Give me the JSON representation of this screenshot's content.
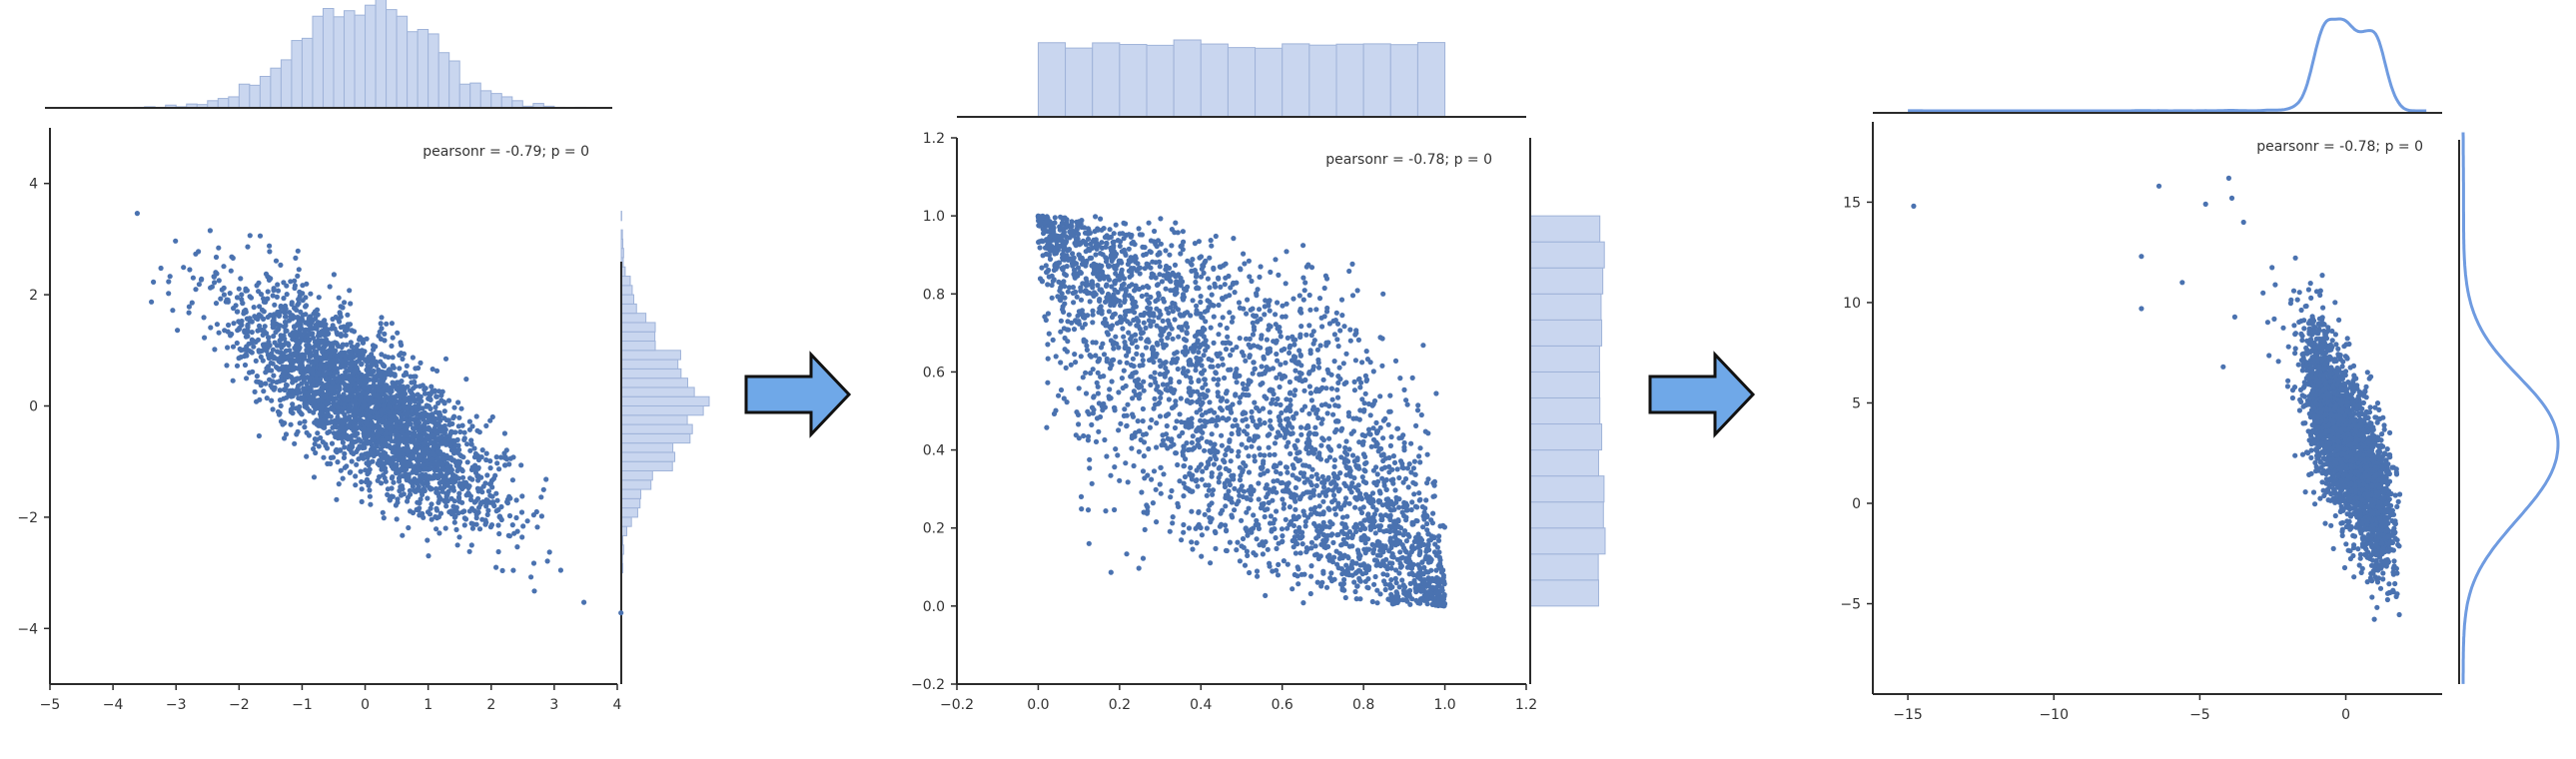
{
  "colors": {
    "point": "#4a72b0",
    "hist_fill": "#c9d6ef",
    "hist_stroke": "#9fb3d9",
    "kde_line": "#6f9be0",
    "axis": "#2b2b2b",
    "arrow_fill": "#6fa8e8",
    "arrow_stroke": "#111111"
  },
  "icons": [
    "arrow-right-icon",
    "arrow-right-icon"
  ],
  "chart_data": [
    {
      "type": "scatter",
      "title": "",
      "xlabel": "",
      "ylabel": "",
      "annotation": "pearsonr = -0.79; p = 0",
      "marginals": "histogram",
      "xlim": [
        -5,
        4
      ],
      "ylim": [
        -5,
        5
      ],
      "xticks": [
        -5,
        -4,
        -3,
        -2,
        -1,
        0,
        1,
        2,
        3,
        4
      ],
      "xtick_labels": [
        "−5",
        "−4",
        "−3",
        "−2",
        "−1",
        "0",
        "1",
        "2",
        "3",
        "4"
      ],
      "yticks": [
        -4,
        -2,
        0,
        2,
        4
      ],
      "ytick_labels": [
        "−4",
        "−2",
        "0",
        "2",
        "4"
      ],
      "distribution": "bivariate normal, mean (0, 0), sd 1, correlation -0.79",
      "n_points": 3000,
      "grid": false
    },
    {
      "type": "scatter",
      "title": "",
      "xlabel": "",
      "ylabel": "",
      "annotation": "pearsonr = -0.78; p = 0",
      "marginals": "histogram",
      "xlim": [
        -0.2,
        1.2
      ],
      "ylim": [
        -0.2,
        1.2
      ],
      "xticks": [
        -0.2,
        0.0,
        0.2,
        0.4,
        0.6,
        0.8,
        1.0,
        1.2
      ],
      "xtick_labels": [
        "−0.2",
        "0.0",
        "0.2",
        "0.4",
        "0.6",
        "0.8",
        "1.0",
        "1.2"
      ],
      "yticks": [
        -0.2,
        0.0,
        0.2,
        0.4,
        0.6,
        0.8,
        1.0,
        1.2
      ],
      "ytick_labels": [
        "−0.2",
        "0.0",
        "0.2",
        "0.4",
        "0.6",
        "0.8",
        "1.0",
        "1.2"
      ],
      "distribution": "uniform marginals on [0, 1] (Gaussian copula), correlation -0.78",
      "n_points": 3000,
      "grid": false
    },
    {
      "type": "scatter",
      "title": "",
      "xlabel": "",
      "ylabel": "",
      "annotation": "pearsonr = -0.78; p = 0",
      "marginals": "kde",
      "xlim": [
        -16.2,
        3.3
      ],
      "ylim": [
        -9.5,
        19
      ],
      "xticks": [
        -15,
        -10,
        -5,
        0
      ],
      "xtick_labels": [
        "−15",
        "−10",
        "−5",
        "0"
      ],
      "yticks": [
        -5,
        0,
        5,
        10,
        15
      ],
      "ytick_labels": [
        "−5",
        "0",
        "5",
        "10",
        "15"
      ],
      "distribution": "trimodal x in [-1.5, 1.5], y = 4 - 2.7 x + noise, heavy upper-left tail",
      "n_points": 3000,
      "outliers": [
        {
          "x": -14.8,
          "y": 14.8
        },
        {
          "x": -6.4,
          "y": 15.8
        },
        {
          "x": -7.0,
          "y": 12.3
        },
        {
          "x": -7.0,
          "y": 9.7
        },
        {
          "x": -5.6,
          "y": 11.0
        },
        {
          "x": -4.8,
          "y": 14.9
        },
        {
          "x": -3.9,
          "y": 15.2
        },
        {
          "x": -3.5,
          "y": 14.0
        },
        {
          "x": -4.2,
          "y": 6.8
        }
      ],
      "grid": false
    }
  ]
}
